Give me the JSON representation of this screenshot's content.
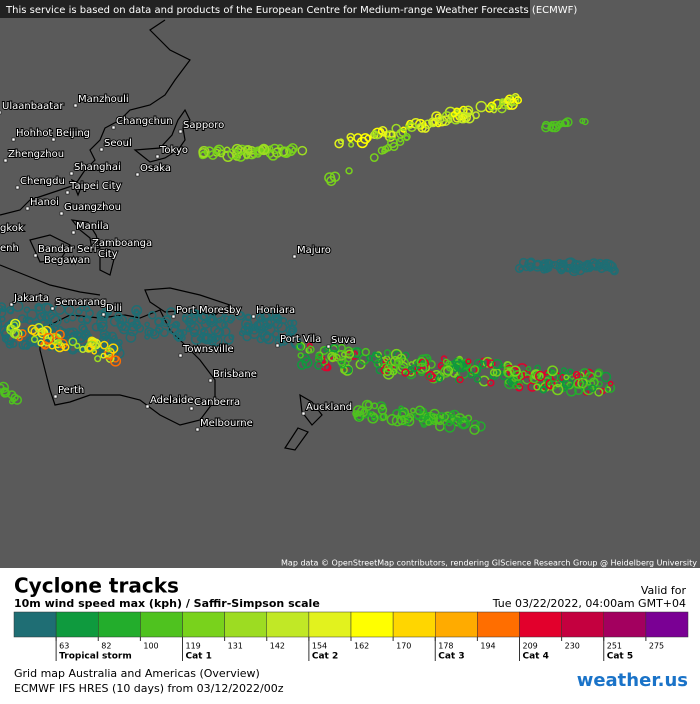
{
  "banner": "This service is based on data and products of the European Centre for Medium-range Weather Forecasts (ECMWF)",
  "cities": [
    "Ulaanbaatar",
    "Manzhouli",
    "Hohhot",
    "Beijing",
    "Changchun",
    "Sapporo",
    "Seoul",
    "Zhengzhou",
    "Tokyo",
    "Osaka",
    "Shanghai",
    "Chengdu",
    "Taipei City",
    "Hanoi",
    "Guangzhou",
    "gkok",
    "Manila",
    [
      "Zamboanga",
      "City"
    ],
    "enh",
    [
      "Bandar Seri",
      "Begawan"
    ],
    "Majuro",
    "Jakarta",
    "Semarang",
    "Dili",
    "Port Moresby",
    "Honiara",
    "Townsville",
    "Port Vila",
    "Suva",
    "Brisbane",
    "Perth",
    "Adelaide",
    "Canberra",
    "Melbourne",
    "Auckland"
  ],
  "attribution": "Map data © OpenStreetMap contributors, rendering GIScience Research Group @ Heidelberg University",
  "legend": {
    "title": "Cyclone tracks",
    "subtitle": "10m wind speed max (kph) / Saffir-Simpson scale",
    "valid_label": "Valid for",
    "valid_time": "Tue 03/22/2022, 04:00am GMT+04",
    "scale": [
      63,
      82,
      100,
      119,
      131,
      142,
      154,
      162,
      170,
      178,
      194,
      209,
      230,
      251,
      275
    ],
    "colors": [
      "#1f6e74",
      "#0f9a3e",
      "#23ad2c",
      "#4fc21f",
      "#79d21c",
      "#9ddc22",
      "#c1e826",
      "#e2f21e",
      "#ffff00",
      "#ffd600",
      "#ffab00",
      "#ff6e00",
      "#e2002c",
      "#c4003f",
      "#a3005f",
      "#7a0094"
    ],
    "categories": [
      {
        "label": "Tropical storm",
        "at": 63
      },
      {
        "label": "Cat 1",
        "at": 119
      },
      {
        "label": "Cat 2",
        "at": 154
      },
      {
        "label": "Cat 3",
        "at": 178
      },
      {
        "label": "Cat 4",
        "at": 209
      },
      {
        "label": "Cat 5",
        "at": 251
      }
    ]
  },
  "footer": {
    "grid": "Grid map Australia and Americas (Overview)",
    "model": "ECMWF IFS HRES (10 days) from 03/12/2022/00z",
    "logo": "weather.us"
  }
}
